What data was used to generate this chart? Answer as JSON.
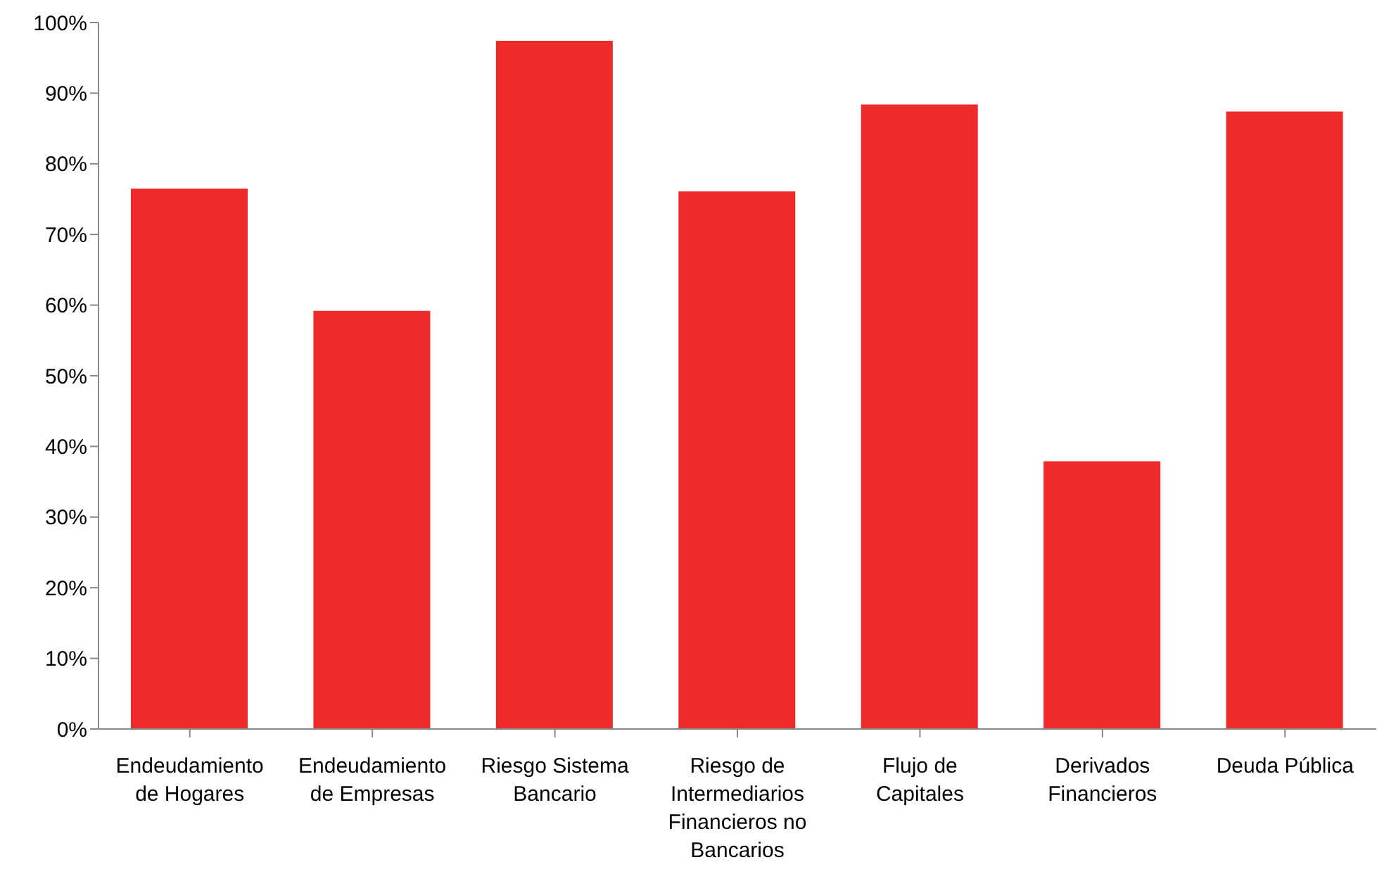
{
  "chart_data": {
    "type": "bar",
    "categories": [
      "Endeudamiento de Hogares",
      "Endeudamiento de Empresas",
      "Riesgo Sistema Bancario",
      "Riesgo de Intermediarios Financieros no Bancarios",
      "Flujo de Capitales",
      "Derivados Financieros",
      "Deuda Pública"
    ],
    "values": [
      76.5,
      59.2,
      97.4,
      76.1,
      88.4,
      37.9,
      87.4
    ],
    "color": "#ee2a2a",
    "ylim": [
      0,
      100
    ],
    "yticks": [
      {
        "value": 0,
        "label": "0%"
      },
      {
        "value": 10,
        "label": "10%"
      },
      {
        "value": 20,
        "label": "20%"
      },
      {
        "value": 30,
        "label": "30%"
      },
      {
        "value": 40,
        "label": "40%"
      },
      {
        "value": 50,
        "label": "50%"
      },
      {
        "value": 60,
        "label": "60%"
      },
      {
        "value": 70,
        "label": "70%"
      },
      {
        "value": 80,
        "label": "80%"
      },
      {
        "value": 90,
        "label": "90%"
      },
      {
        "value": 100,
        "label": "100%"
      }
    ],
    "grid": false,
    "legend": false
  }
}
